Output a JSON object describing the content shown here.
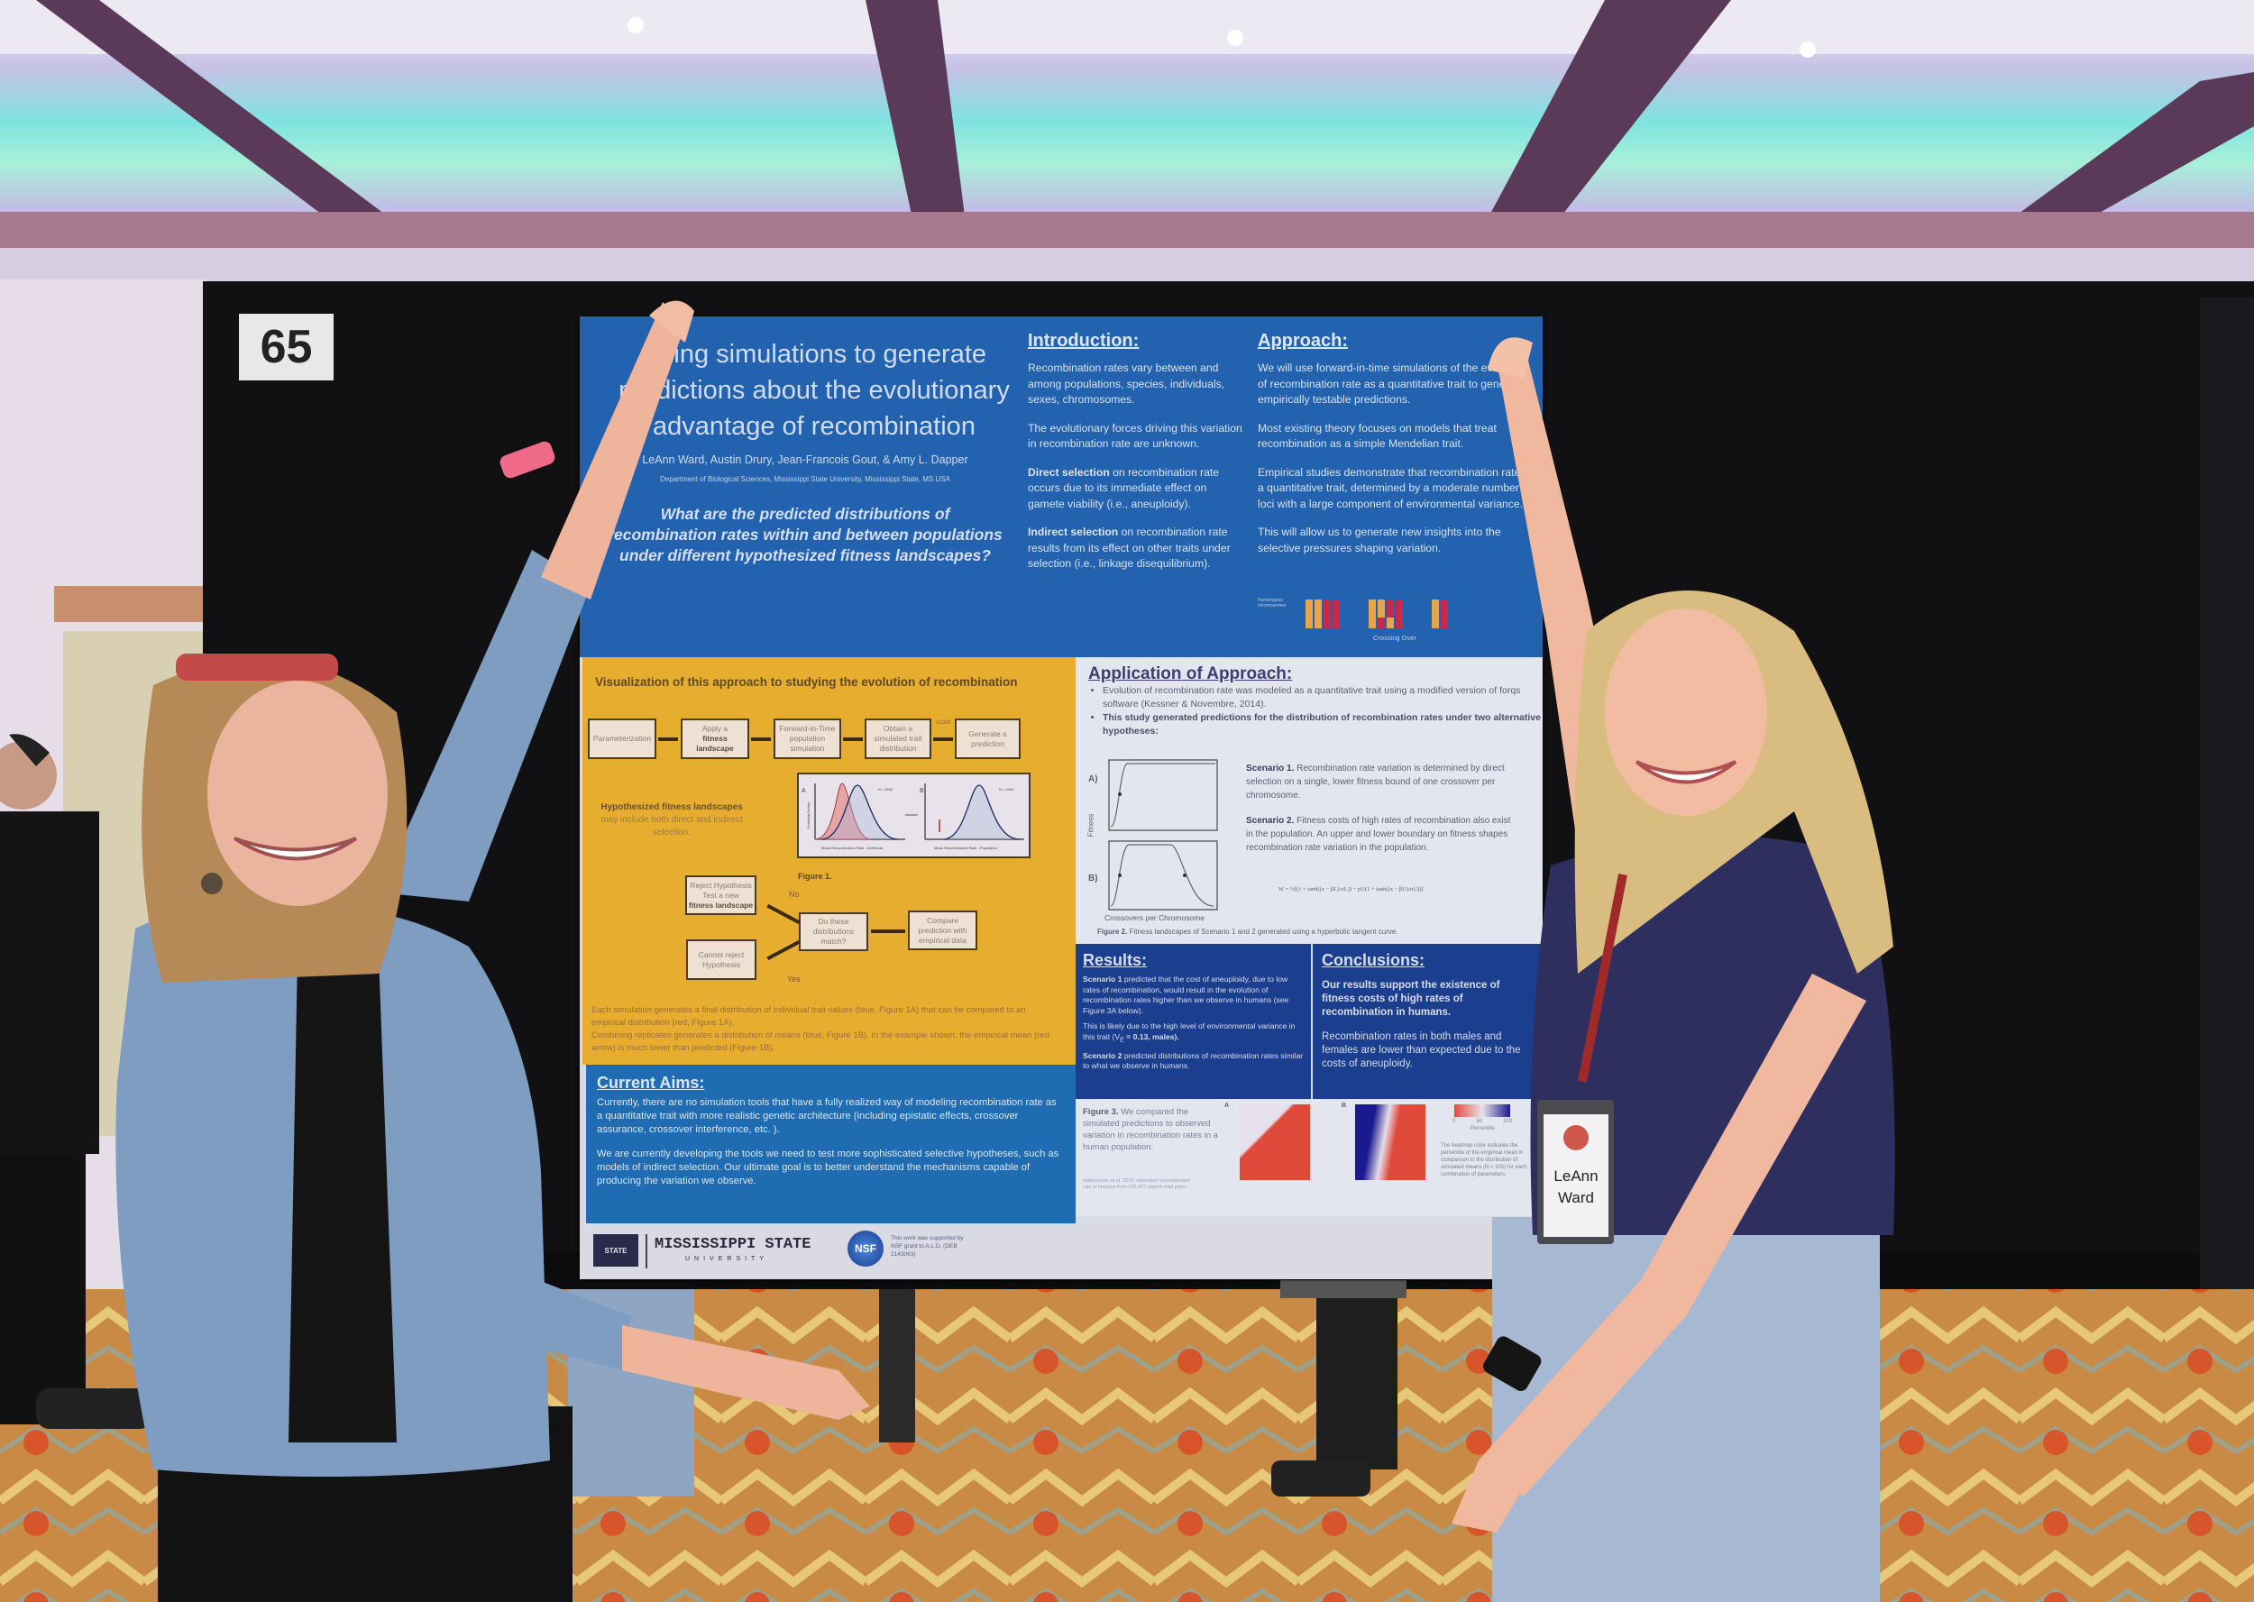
{
  "board": {
    "number": "65"
  },
  "poster": {
    "title": "Using simulations to generate predictions about the evolutionary advantage of recombination",
    "authors": "LeAnn Ward, Austin Drury, Jean-Francois Gout, & Amy L. Dapper",
    "department": "Department of Biological Sciences, Mississippi State University, Mississippi State, MS USA",
    "question": "What are the predicted distributions of recombination rates within and between populations under different hypothesized fitness landscapes?",
    "introduction": {
      "heading": "Introduction:",
      "p1": "Recombination rates vary between and among populations, species, individuals, sexes, chromosomes.",
      "p2": "The evolutionary forces driving this variation in recombination rate are unknown.",
      "p3_bold": "Direct selection",
      "p3": " on recombination rate occurs due to its immediate effect on gamete viability (i.e., aneuploidy).",
      "p4_bold": "Indirect selection",
      "p4": " on recombination rate results from its effect on other traits under selection (i.e., linkage disequilibrium)."
    },
    "approach": {
      "heading": "Approach:",
      "p1": "We will use forward-in-time simulations of the evolution of recombination rate as a quantitative trait to generate empirically testable predictions.",
      "p2": "Most existing theory focuses on models that treat recombination as a simple Mendelian trait.",
      "p3": "Empirical studies demonstrate that recombination rate is a quantitative trait, determined by a moderate number of loci with a large component of environmental variance.",
      "p4": "This will allow us to generate new insights into the selective pressures shaping variation.",
      "chromosome_label": "Homologous chromosomes",
      "crossing_over": "Crossing Over"
    },
    "visualization": {
      "heading": "Visualization of this approach to studying the evolution of recombination",
      "boxes": {
        "param": "Parameterization",
        "apply1": "Apply a",
        "apply2": "fitness landscape",
        "forward": "Forward-in-Time population simulation",
        "obtain": "Obtain a simulated trait distribution",
        "generate": "Generate a prediction",
        "reject1": "Reject Hypothesis Test a new",
        "reject2": "fitness landscape",
        "cannot": "Cannot reject Hypothesis",
        "match": "Do these distributions match?",
        "compare": "Compare prediction with empirical data"
      },
      "x1000": "x1000",
      "no": "No",
      "yes": "Yes",
      "hyp_bold": "Hypothesized fitness landscapes",
      "hyp": "may include both direct and indirect selection.",
      "fig1_label": "Figure 1.",
      "fig1a_panel": "A",
      "fig1b_panel": "B",
      "fig1a_n": "N = 5000",
      "fig1b_n": "N = 1000",
      "fig1a_xlabel": "Mean Recombination Rate - Individual",
      "fig1b_xlabel": "Mean Recombination Rate - Population",
      "fig1_ylabel": "Probability Density",
      "caption1": "Each simulation generates a final distribution of individual trait values (blue, Figure 1A) that can be compared to an empirical distribution (red, Figure 1A).",
      "caption2": "Combining replicates generates a distribution of means (blue, Figure 1B). In the example shown, the empirical mean (red arrow) is much lower than predicted (Figure 1B)."
    },
    "application": {
      "heading": "Application of Approach:",
      "b1": "Evolution of recombination rate was modeled as a quantitative trait using a modified version of forqs software (Kessner & Novembre, 2014).",
      "b2": "This study generated predictions for the distribution of recombination rates under two alternative hypotheses:",
      "panel_a": "A)",
      "panel_b": "B)",
      "ylabel": "Fitness",
      "xlabel": "Crossovers per Chromosome",
      "s1_bold": "Scenario 1.",
      "s1": " Recombination rate variation is determined by direct selection on a single, lower fitness bound of one crossover per chromosome.",
      "s2_bold": "Scenario 2.",
      "s2": " Fitness costs of high rates of recombination also exist in the population. An upper and lower boundary on fitness shapes recombination rate variation in the population.",
      "formula": "W = ½[(1 + tanh((x − βL)/σL)) − pU(1 + tanh((x − βU)/σU))]",
      "fig2_bold": "Figure 2.",
      "fig2": " Fitness landscapes of Scenario 1 and 2 generated using a hyperbolic tangent curve."
    },
    "results": {
      "heading": "Results:",
      "p1_bold": "Scenario 1",
      "p1": " predicted that the cost of aneuploidy, due to low rates of recombination, would result in the evolution of recombination rates higher than we observe in humans (see Figure 3A below).",
      "p2": "This is likely due to the high level of environmental variance in this trait (V",
      "p2_sub": "E",
      "p2_end": " = 0.13, males).",
      "p3_bold": "Scenario 2",
      "p3": " predicted distributions of recombination rates similar to what we observe in humans."
    },
    "conclusions": {
      "heading": "Conclusions:",
      "p1": "Our results support the existence of fitness costs of high rates of recombination in humans.",
      "p2": "Recombination rates in both males and females are lower than expected due to the costs of aneuploidy."
    },
    "figure3": {
      "caption_bold": "Figure 3.",
      "caption": " We compared the simulated predictions to observed variation in recombination rates in a human population.",
      "note": "Halldorsson et al. 2019; estimated recombination rate in humans from 126,407 parent child pairs.",
      "panel_a": "A",
      "panel_b": "B",
      "legend_ticks": [
        "0",
        "50",
        "100"
      ],
      "legend_title": "Percentile",
      "legend_note": "The heatmap color indicates the percentile of the empirical mean in comparison to the distribution of simulated means (N = 100) for each combination of parameters."
    },
    "current_aims": {
      "heading": "Current Aims:",
      "p1": "Currently, there are no simulation tools that have a fully realized way of modeling recombination rate as a quantitative trait with more realistic genetic architecture (including epistatic effects, crossover assurance, crossover interference, etc. ).",
      "p2": "We are currently developing the tools we need to test more sophisticated selective hypotheses, such as models of indirect selection. Our ultimate goal is to better understand the mechanisms capable of producing the variation we observe."
    },
    "footer": {
      "msu_name": "MISSISSIPPI STATE",
      "msu_sub": "UNIVERSITY",
      "msu_logo": "STATE",
      "nsf_logo": "NSF",
      "support": "This work was supported by NSF grant to A.L.D. (DEB 2143063)"
    },
    "colors": {
      "header_blue": "#2262ae",
      "flow_yellow": "#e7ad2f",
      "results_navy": "#1c3e8e",
      "aims_blue": "#1f6cb2"
    }
  },
  "badge": {
    "first": "LeAnn",
    "last": "Ward"
  }
}
